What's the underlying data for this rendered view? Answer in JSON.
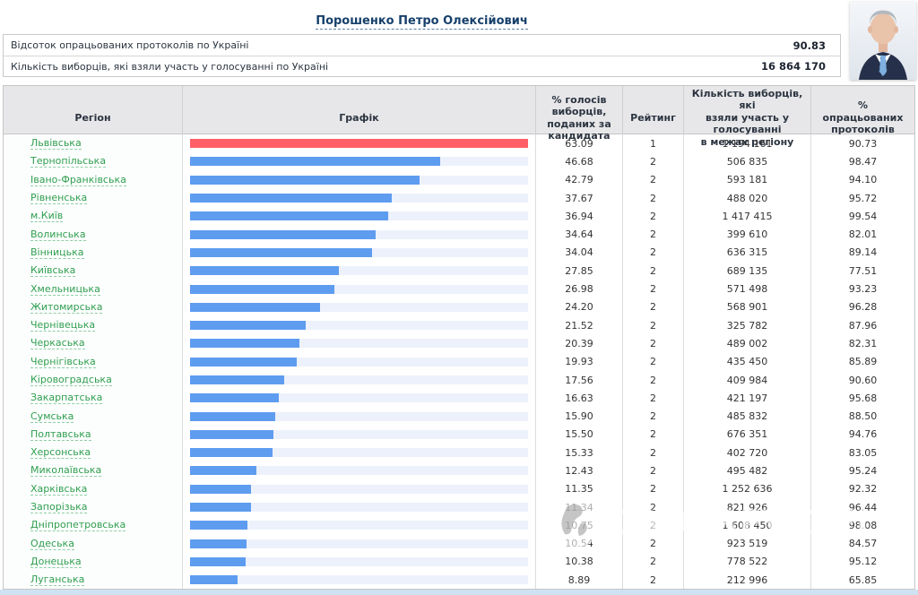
{
  "candidate": {
    "name": "Порошенко Петро Олексійович"
  },
  "summary": {
    "rows": [
      {
        "label": "Відсоток опрацьованих протоколів по Україні",
        "value": "90.83"
      },
      {
        "label": "Кількість виборців, які взяли участь у голосуванні по Україні",
        "value": "16 864 170"
      }
    ]
  },
  "watermark": {
    "text": "OBOZREVATEL"
  },
  "colors": {
    "leader_bar": "#ff5f66",
    "bar": "#5e9cf0",
    "track": "#edf1fb",
    "region_link": "#2f9e4f",
    "title_link": "#17406b"
  },
  "table": {
    "headers": {
      "region": "Регіон",
      "graph": "Графік",
      "percent": "% голосів\nвиборців,\nподаних за\nкандидата",
      "rating": "Рейтинг",
      "voters": "Кількість виборців, які\nвзяли участь у\nголосуванні\nв межах регіону",
      "protocols": "%\nопрацьованих\nпротоколів"
    },
    "rows": [
      {
        "region": "Львівська",
        "percent": "63.09",
        "rating": "1",
        "voters": "1 194 161",
        "protocols": "90.73"
      },
      {
        "region": "Тернопільська",
        "percent": "46.68",
        "rating": "2",
        "voters": "506 835",
        "protocols": "98.47"
      },
      {
        "region": "Івано-Франківська",
        "percent": "42.79",
        "rating": "2",
        "voters": "593 181",
        "protocols": "94.10"
      },
      {
        "region": "Рівненська",
        "percent": "37.67",
        "rating": "2",
        "voters": "488 020",
        "protocols": "95.72"
      },
      {
        "region": "м.Київ",
        "percent": "36.94",
        "rating": "2",
        "voters": "1 417 415",
        "protocols": "99.54"
      },
      {
        "region": "Волинська",
        "percent": "34.64",
        "rating": "2",
        "voters": "399 610",
        "protocols": "82.01"
      },
      {
        "region": "Вінницька",
        "percent": "34.04",
        "rating": "2",
        "voters": "636 315",
        "protocols": "89.14"
      },
      {
        "region": "Київська",
        "percent": "27.85",
        "rating": "2",
        "voters": "689 135",
        "protocols": "77.51"
      },
      {
        "region": "Хмельницька",
        "percent": "26.98",
        "rating": "2",
        "voters": "571 498",
        "protocols": "93.23"
      },
      {
        "region": "Житомирська",
        "percent": "24.20",
        "rating": "2",
        "voters": "568 901",
        "protocols": "96.28"
      },
      {
        "region": "Чернівецька",
        "percent": "21.52",
        "rating": "2",
        "voters": "325 782",
        "protocols": "87.96"
      },
      {
        "region": "Черкаська",
        "percent": "20.39",
        "rating": "2",
        "voters": "489 002",
        "protocols": "82.31"
      },
      {
        "region": "Чернігівська",
        "percent": "19.93",
        "rating": "2",
        "voters": "435 450",
        "protocols": "85.89"
      },
      {
        "region": "Кіровоградська",
        "percent": "17.56",
        "rating": "2",
        "voters": "409 984",
        "protocols": "90.60"
      },
      {
        "region": "Закарпатська",
        "percent": "16.63",
        "rating": "2",
        "voters": "421 197",
        "protocols": "95.68"
      },
      {
        "region": "Сумська",
        "percent": "15.90",
        "rating": "2",
        "voters": "485 832",
        "protocols": "88.50"
      },
      {
        "region": "Полтавська",
        "percent": "15.50",
        "rating": "2",
        "voters": "676 351",
        "protocols": "94.76"
      },
      {
        "region": "Херсонська",
        "percent": "15.33",
        "rating": "2",
        "voters": "402 720",
        "protocols": "83.05"
      },
      {
        "region": "Миколаївська",
        "percent": "12.43",
        "rating": "2",
        "voters": "495 482",
        "protocols": "95.24"
      },
      {
        "region": "Харківська",
        "percent": "11.35",
        "rating": "2",
        "voters": "1 252 636",
        "protocols": "92.32"
      },
      {
        "region": "Запорізька",
        "percent": "11.34",
        "rating": "2",
        "voters": "821 926",
        "protocols": "96.44"
      },
      {
        "region": "Дніпропетровська",
        "percent": "10.75",
        "rating": "2",
        "voters": "1 608 450",
        "protocols": "98.08"
      },
      {
        "region": "Одеська",
        "percent": "10.54",
        "rating": "2",
        "voters": "923 519",
        "protocols": "84.57"
      },
      {
        "region": "Донецька",
        "percent": "10.38",
        "rating": "2",
        "voters": "778 522",
        "protocols": "95.12"
      },
      {
        "region": "Луганська",
        "percent": "8.89",
        "rating": "2",
        "voters": "212 996",
        "protocols": "65.85"
      }
    ]
  },
  "chart_data": {
    "type": "bar",
    "orientation": "horizontal",
    "title": "Порошенко Петро Олексійович — % голосів виборців, поданих за кандидата",
    "categories": [
      "Львівська",
      "Тернопільська",
      "Івано-Франківська",
      "Рівненська",
      "м.Київ",
      "Волинська",
      "Вінницька",
      "Київська",
      "Хмельницька",
      "Житомирська",
      "Чернівецька",
      "Черкаська",
      "Чернігівська",
      "Кіровоградська",
      "Закарпатська",
      "Сумська",
      "Полтавська",
      "Херсонська",
      "Миколаївська",
      "Харківська",
      "Запорізька",
      "Дніпропетровська",
      "Одеська",
      "Донецька",
      "Луганська"
    ],
    "values": [
      63.09,
      46.68,
      42.79,
      37.67,
      36.94,
      34.64,
      34.04,
      27.85,
      26.98,
      24.2,
      21.52,
      20.39,
      19.93,
      17.56,
      16.63,
      15.9,
      15.5,
      15.33,
      12.43,
      11.35,
      11.34,
      10.75,
      10.54,
      10.38,
      8.89
    ],
    "xlim": [
      0,
      63.09
    ],
    "bar_colors_note": "first bar red (leader), others blue"
  }
}
